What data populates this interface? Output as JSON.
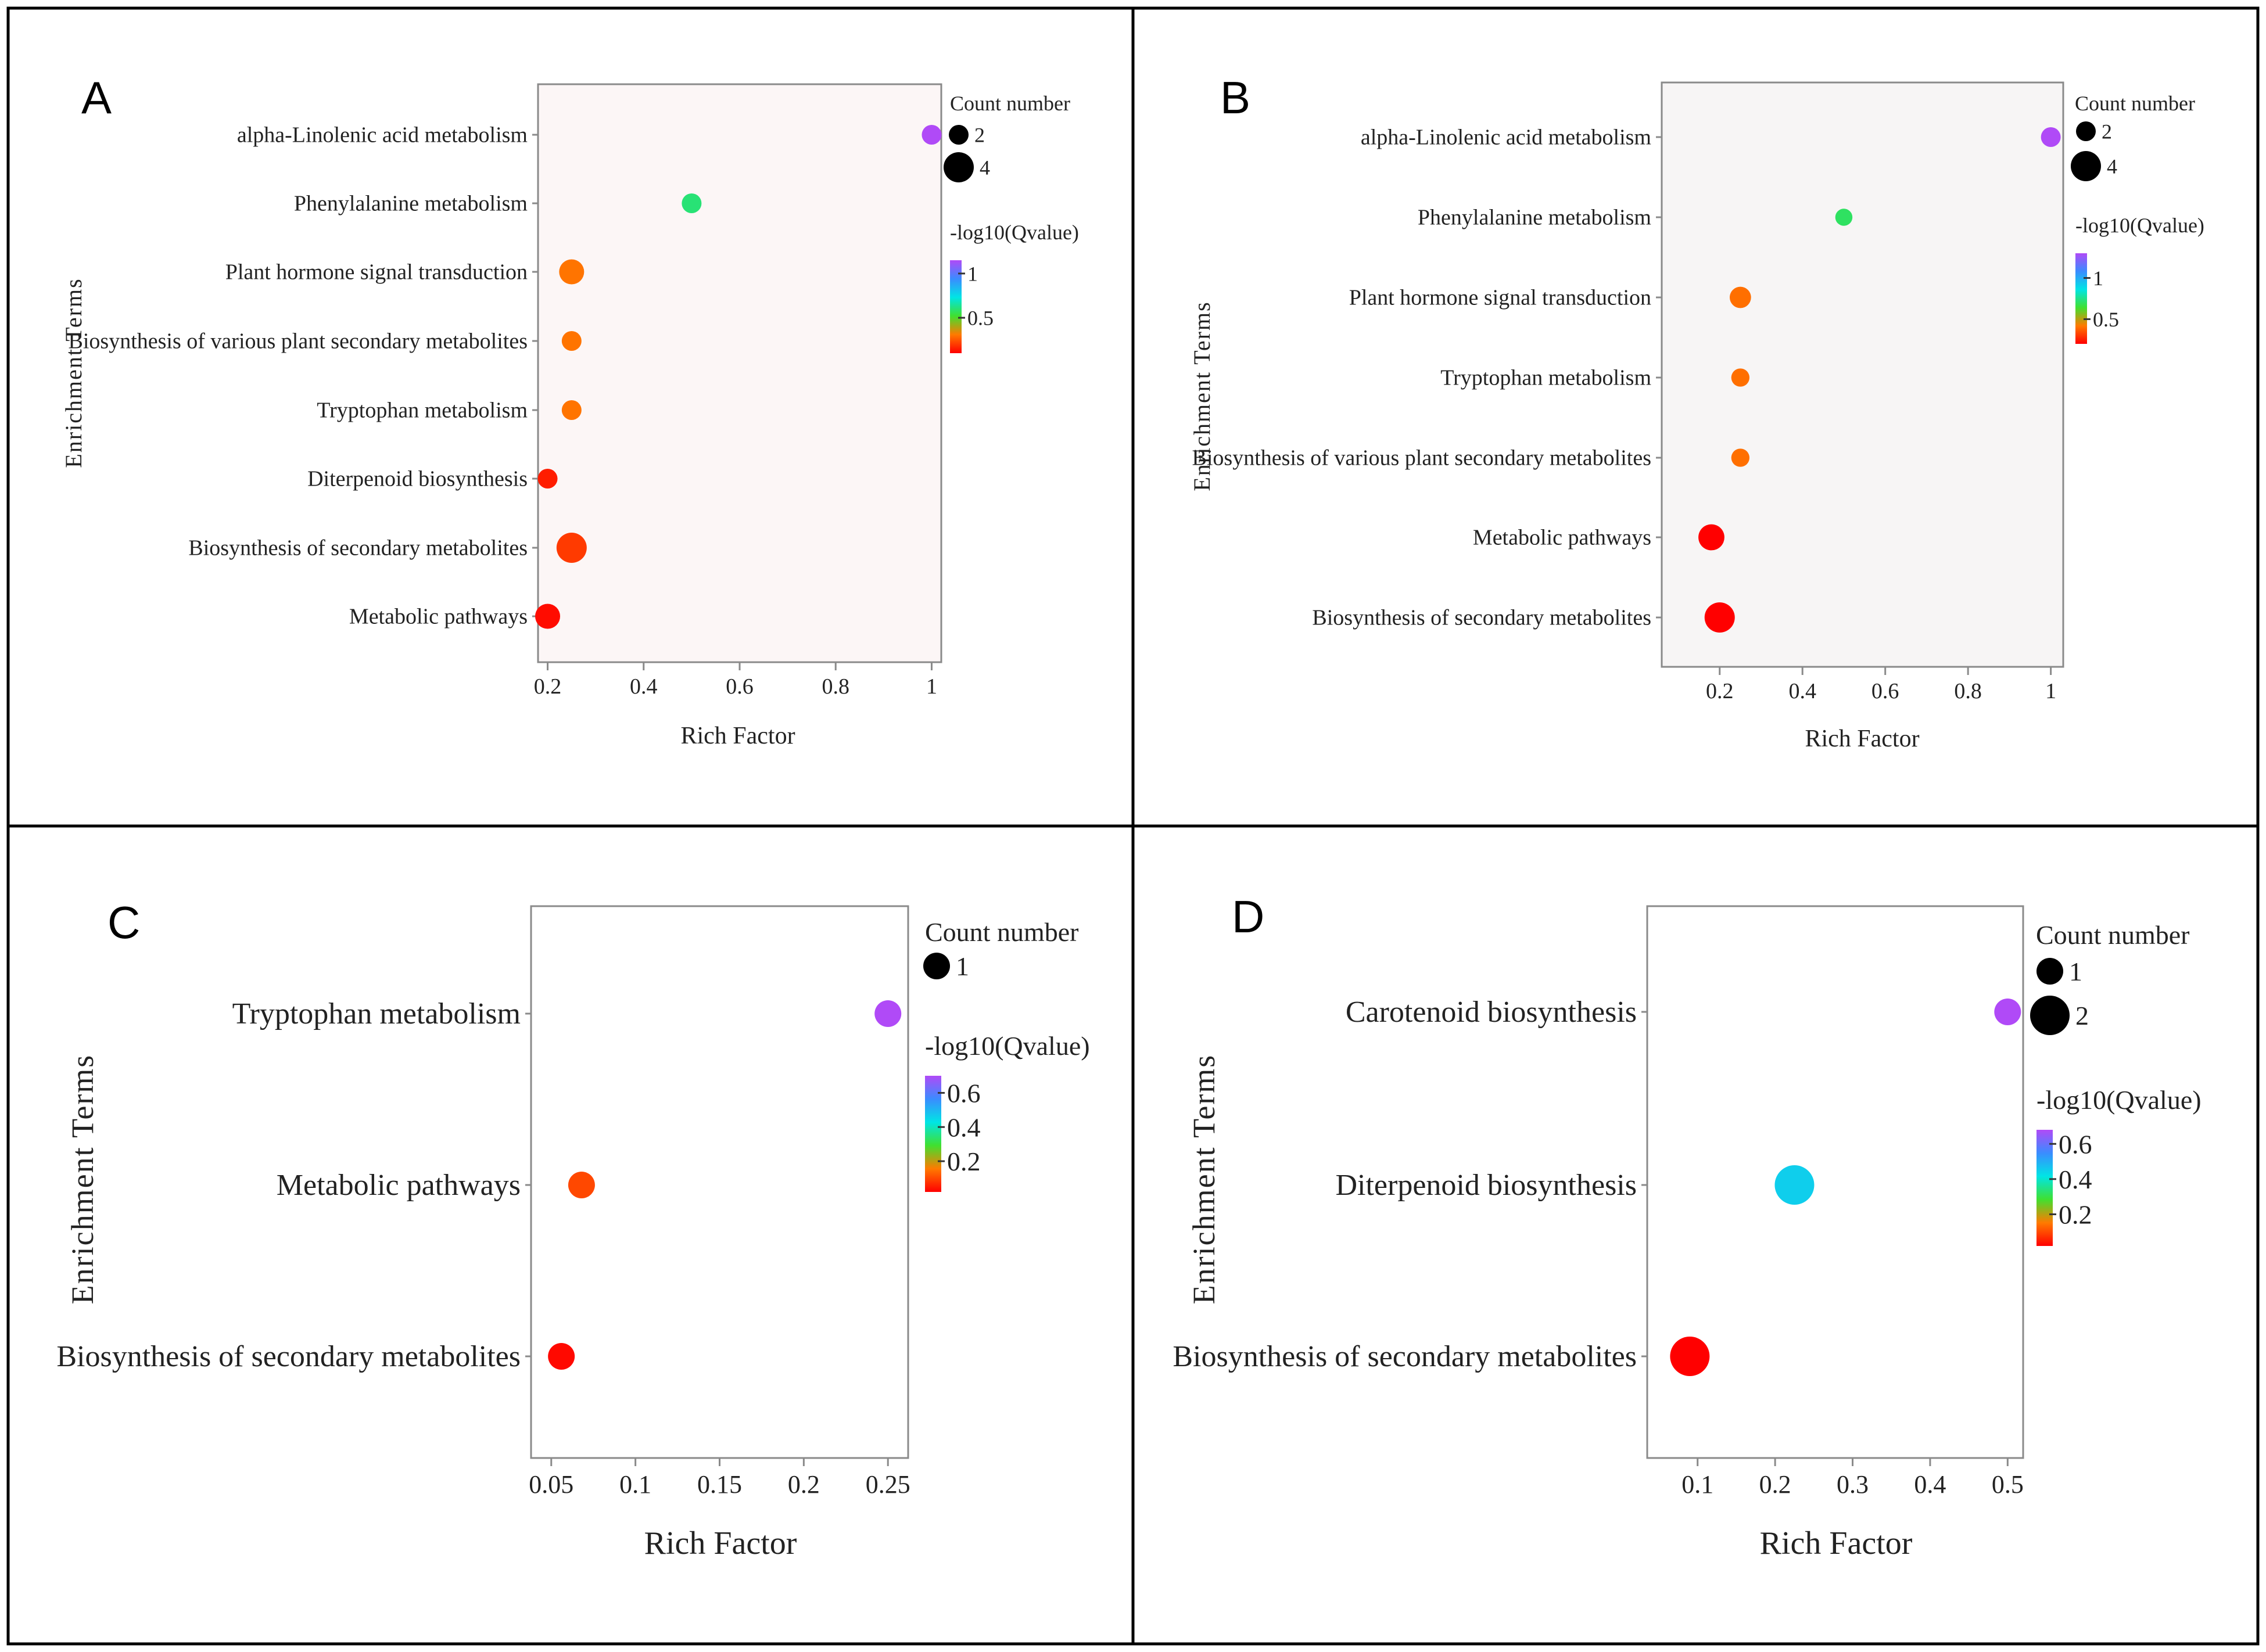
{
  "figure": {
    "panels": [
      {
        "letter": "A",
        "cell": "top-left"
      },
      {
        "letter": "B",
        "cell": "top-right"
      },
      {
        "letter": "C",
        "cell": "bottom-left"
      },
      {
        "letter": "D",
        "cell": "bottom-right"
      }
    ]
  },
  "chart_data": [
    {
      "panel": "A",
      "type": "scatter",
      "xlabel": "Rich Factor",
      "ylabel": "Enrichment Terms",
      "xlim": [
        0.18,
        1.02
      ],
      "xticks": [
        0.2,
        0.4,
        0.6,
        0.8,
        1
      ],
      "xtick_labels": [
        "0.2",
        "0.4",
        "0.6",
        "0.8",
        "1"
      ],
      "size_legend_title": "Count number",
      "size_legend": [
        {
          "label": "2",
          "count": 2
        },
        {
          "label": "4",
          "count": 4
        }
      ],
      "color_legend_title": "-log10(Qvalue)",
      "color_range": [
        0.1,
        1.15
      ],
      "color_ticks": [
        {
          "label": "1",
          "value": 1
        },
        {
          "label": "0.5",
          "value": 0.5
        }
      ],
      "points": [
        {
          "term": "alpha-Linolenic acid metabolism",
          "x": 1.0,
          "count": 2,
          "q": 1.15
        },
        {
          "term": "Phenylalanine metabolism",
          "x": 0.5,
          "count": 2,
          "q": 0.6
        },
        {
          "term": "Plant hormone signal transduction",
          "x": 0.25,
          "count": 3,
          "q": 0.3
        },
        {
          "term": "Biosynthesis of various plant secondary metabolites",
          "x": 0.25,
          "count": 2,
          "q": 0.3
        },
        {
          "term": "Tryptophan metabolism",
          "x": 0.25,
          "count": 2,
          "q": 0.3
        },
        {
          "term": "Diterpenoid biosynthesis",
          "x": 0.2,
          "count": 2,
          "q": 0.15
        },
        {
          "term": "Biosynthesis of secondary metabolites",
          "x": 0.25,
          "count": 4,
          "q": 0.2
        },
        {
          "term": "Metabolic pathways",
          "x": 0.2,
          "count": 3,
          "q": 0.12
        }
      ]
    },
    {
      "panel": "B",
      "type": "scatter",
      "xlabel": "Rich Factor",
      "ylabel": "Enrichment Terms",
      "xlim": [
        0.06,
        1.03
      ],
      "xticks": [
        0.2,
        0.4,
        0.6,
        0.8,
        1
      ],
      "xtick_labels": [
        "0.2",
        "0.4",
        "0.6",
        "0.8",
        "1"
      ],
      "size_legend_title": "Count number",
      "size_legend": [
        {
          "label": "2",
          "count": 2
        },
        {
          "label": "4",
          "count": 4
        }
      ],
      "color_legend_title": "-log10(Qvalue)",
      "color_range": [
        0.2,
        1.3
      ],
      "color_ticks": [
        {
          "label": "1",
          "value": 1
        },
        {
          "label": "0.5",
          "value": 0.5
        }
      ],
      "points": [
        {
          "term": "alpha-Linolenic acid metabolism",
          "x": 1.0,
          "count": 2,
          "q": 1.3
        },
        {
          "term": "Phenylalanine metabolism",
          "x": 0.5,
          "count": 1.5,
          "q": 0.7
        },
        {
          "term": "Plant hormone signal transduction",
          "x": 0.25,
          "count": 2.3,
          "q": 0.4
        },
        {
          "term": "Tryptophan metabolism",
          "x": 0.25,
          "count": 1.7,
          "q": 0.4
        },
        {
          "term": "Biosynthesis of various plant secondary metabolites",
          "x": 0.25,
          "count": 1.7,
          "q": 0.4
        },
        {
          "term": "Metabolic pathways",
          "x": 0.18,
          "count": 3.2,
          "q": 0.2
        },
        {
          "term": "Biosynthesis of secondary metabolites",
          "x": 0.2,
          "count": 4,
          "q": 0.2
        }
      ]
    },
    {
      "panel": "C",
      "type": "scatter",
      "xlabel": "Rich Factor",
      "ylabel": "Enrichment Terms",
      "xlim": [
        0.038,
        0.262
      ],
      "xticks": [
        0.05,
        0.1,
        0.15,
        0.2,
        0.25
      ],
      "xtick_labels": [
        "0.05",
        "0.1",
        "0.15",
        "0.2",
        "0.25"
      ],
      "size_legend_title": "Count number",
      "size_legend": [
        {
          "label": "1",
          "count": 1
        }
      ],
      "color_legend_title": "-log10(Qvalue)",
      "color_range": [
        0.02,
        0.7
      ],
      "color_ticks": [
        {
          "label": "0.6",
          "value": 0.6
        },
        {
          "label": "0.4",
          "value": 0.4
        },
        {
          "label": "0.2",
          "value": 0.2
        }
      ],
      "points": [
        {
          "term": "Tryptophan metabolism",
          "x": 0.25,
          "count": 1,
          "q": 0.7
        },
        {
          "term": "Metabolic pathways",
          "x": 0.068,
          "count": 1,
          "q": 0.1
        },
        {
          "term": "Biosynthesis of secondary metabolites",
          "x": 0.056,
          "count": 1,
          "q": 0.03
        }
      ]
    },
    {
      "panel": "D",
      "type": "scatter",
      "xlabel": "Rich Factor",
      "ylabel": "Enrichment Terms",
      "xlim": [
        0.035,
        0.52
      ],
      "xticks": [
        0.1,
        0.2,
        0.3,
        0.4,
        0.5
      ],
      "xtick_labels": [
        "0.1",
        "0.2",
        "0.3",
        "0.4",
        "0.5"
      ],
      "size_legend_title": "Count number",
      "size_legend": [
        {
          "label": "1",
          "count": 1
        },
        {
          "label": "2",
          "count": 2
        }
      ],
      "color_legend_title": "-log10(Qvalue)",
      "color_range": [
        0.02,
        0.68
      ],
      "color_ticks": [
        {
          "label": "0.6",
          "value": 0.6
        },
        {
          "label": "0.4",
          "value": 0.4
        },
        {
          "label": "0.2",
          "value": 0.2
        }
      ],
      "points": [
        {
          "term": "Carotenoid biosynthesis",
          "x": 0.5,
          "count": 1,
          "q": 0.68
        },
        {
          "term": "Diterpenoid biosynthesis",
          "x": 0.225,
          "count": 2,
          "q": 0.45
        },
        {
          "term": "Biosynthesis of secondary metabolites",
          "x": 0.09,
          "count": 2,
          "q": 0.02
        }
      ]
    }
  ]
}
